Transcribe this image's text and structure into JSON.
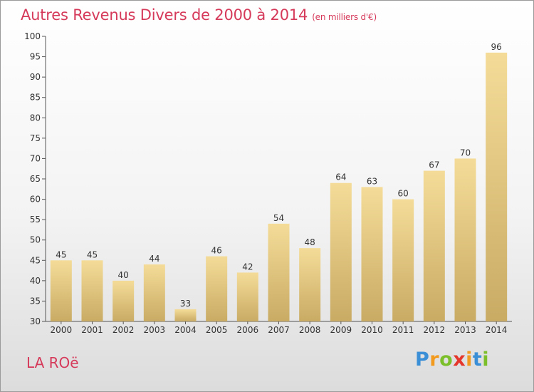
{
  "header": {
    "title": "Autres Revenus Divers de 2000 à 2014",
    "subtitle": "(en milliers d'€)"
  },
  "footer": {
    "commune": "LA ROë",
    "logo": {
      "letters": [
        "P",
        "r",
        "o",
        "x",
        "i",
        "t",
        "i"
      ],
      "colors": [
        "#3a8fd6",
        "#f29a1e",
        "#7bbf2a",
        "#e5362b",
        "#f29a1e",
        "#3a8fd6",
        "#7bbf2a"
      ]
    }
  },
  "chart_data": {
    "type": "bar",
    "title": "Autres Revenus Divers de 2000 à 2014",
    "subtitle": "(en milliers d'€)",
    "xlabel": "",
    "ylabel": "",
    "categories": [
      "2000",
      "2001",
      "2002",
      "2003",
      "2004",
      "2005",
      "2006",
      "2007",
      "2008",
      "2009",
      "2010",
      "2011",
      "2012",
      "2013",
      "2014"
    ],
    "values": [
      45,
      45,
      40,
      44,
      33,
      46,
      42,
      54,
      48,
      64,
      63,
      60,
      67,
      70,
      96
    ],
    "ylim": [
      30,
      100
    ],
    "yticks": [
      30,
      35,
      40,
      45,
      50,
      55,
      60,
      65,
      70,
      75,
      80,
      85,
      90,
      95,
      100
    ],
    "grid": false,
    "bar_color": "#e2c47a"
  }
}
